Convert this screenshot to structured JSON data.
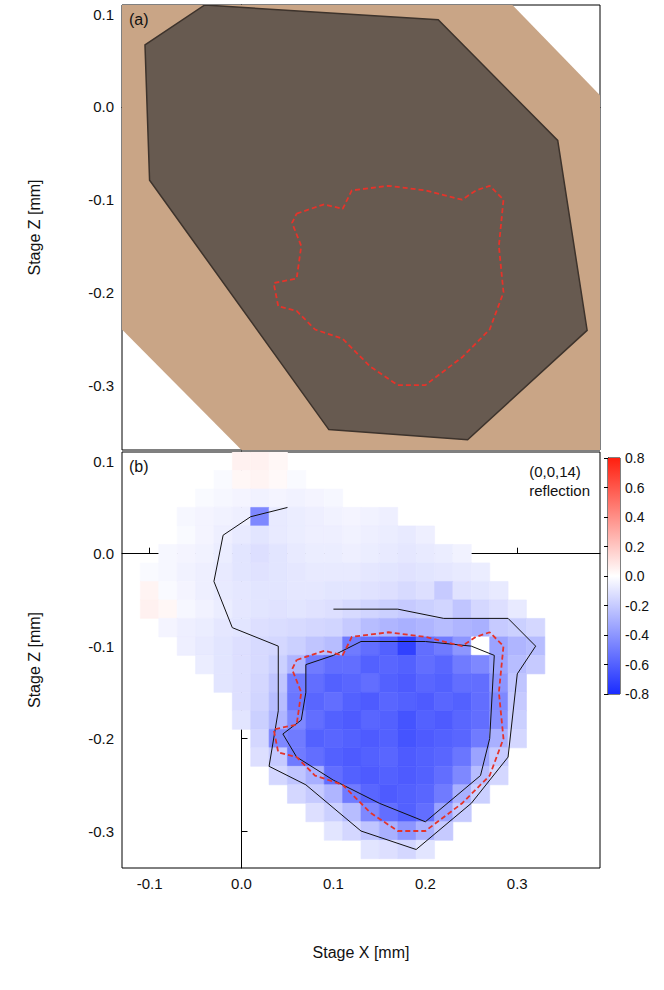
{
  "chart_data": [
    {
      "type": "photo",
      "label": "(a)",
      "ylabel": "Stage Z [mm]",
      "xlim": [
        -0.13,
        0.39
      ],
      "ylim": [
        -0.37,
        0.11
      ],
      "xticks": [
        -0.1,
        {
          "value": 0,
          "label": "0.0"
        },
        0.1,
        0.2,
        0.3
      ],
      "yticks": [
        -0.3,
        -0.2,
        -0.1,
        {
          "value": 0,
          "label": "0.0"
        },
        0.1
      ],
      "tick_labels": "y",
      "photo_edge": [
        [
          -0.3,
          -0.07
        ],
        [
          -0.3,
          0.3
        ],
        [
          0.109,
          0.3
        ],
        [
          0.5,
          -0.1
        ],
        [
          0.5,
          -0.5
        ],
        [
          0.13,
          -0.5
        ]
      ],
      "crystal": [
        [
          -0.105,
          0.067
        ],
        [
          -0.04,
          0.11
        ],
        [
          0.214,
          0.094
        ],
        [
          0.344,
          -0.036
        ],
        [
          0.376,
          -0.241
        ],
        [
          0.246,
          -0.359
        ],
        [
          0.095,
          -0.348
        ],
        [
          -0.1,
          -0.079
        ]
      ],
      "outline": {
        "color": "#e5332a",
        "line_style": "dashed",
        "points": [
          [
            0.06,
            -0.115
          ],
          [
            0.09,
            -0.105
          ],
          [
            0.11,
            -0.11
          ],
          [
            0.12,
            -0.09
          ],
          [
            0.16,
            -0.085
          ],
          [
            0.2,
            -0.09
          ],
          [
            0.24,
            -0.1
          ],
          [
            0.255,
            -0.09
          ],
          [
            0.27,
            -0.085
          ],
          [
            0.285,
            -0.1
          ],
          [
            0.28,
            -0.15
          ],
          [
            0.285,
            -0.2
          ],
          [
            0.27,
            -0.24
          ],
          [
            0.24,
            -0.27
          ],
          [
            0.2,
            -0.3
          ],
          [
            0.17,
            -0.3
          ],
          [
            0.14,
            -0.28
          ],
          [
            0.11,
            -0.25
          ],
          [
            0.08,
            -0.24
          ],
          [
            0.06,
            -0.22
          ],
          [
            0.04,
            -0.215
          ],
          [
            0.035,
            -0.19
          ],
          [
            0.06,
            -0.185
          ],
          [
            0.065,
            -0.15
          ],
          [
            0.055,
            -0.125
          ],
          [
            0.06,
            -0.115
          ]
        ]
      }
    },
    {
      "type": "heatmap",
      "label": "(b)",
      "annotation": "(0,0,14) reflection",
      "xlabel": "Stage X [mm]",
      "ylabel": "Stage Z [mm]",
      "xlim": [
        -0.13,
        0.39
      ],
      "ylim": [
        -0.34,
        0.11
      ],
      "xticks": [
        -0.1,
        {
          "value": 0,
          "label": "0.0"
        },
        0.1,
        0.2,
        0.3
      ],
      "yticks": [
        -0.3,
        -0.2,
        -0.1,
        {
          "value": 0,
          "label": "0.0"
        },
        0.1
      ],
      "cells": {
        "x": [
          -0.1,
          -0.08,
          -0.06,
          -0.04,
          -0.02,
          0,
          0.02,
          0.04,
          0.06,
          0.08,
          0.1,
          0.12,
          0.14,
          0.16,
          0.18,
          0.2,
          0.22,
          0.24,
          0.26,
          0.28,
          0.3,
          0.32
        ],
        "z": [
          0.1,
          0.08,
          0.06,
          0.04,
          0.02,
          0,
          -0.02,
          -0.04,
          -0.06,
          -0.08,
          -0.1,
          -0.12,
          -0.14,
          -0.16,
          -0.18,
          -0.2,
          -0.22,
          -0.24,
          -0.26,
          -0.28,
          -0.3,
          -0.32
        ],
        "values": [
          [
            null,
            null,
            null,
            null,
            null,
            0.05,
            0.05,
            0.03,
            null,
            null,
            null,
            null,
            null,
            null,
            null,
            null,
            null,
            null,
            null,
            null,
            null,
            null
          ],
          [
            null,
            null,
            null,
            null,
            -0.02,
            0.03,
            0.04,
            0.02,
            -0.02,
            null,
            null,
            null,
            null,
            null,
            null,
            null,
            null,
            null,
            null,
            null,
            null,
            null
          ],
          [
            null,
            null,
            null,
            -0.02,
            -0.03,
            -0.04,
            -0.05,
            -0.04,
            -0.05,
            -0.04,
            -0.03,
            null,
            null,
            null,
            null,
            null,
            null,
            null,
            null,
            null,
            null,
            null
          ],
          [
            null,
            null,
            -0.03,
            -0.04,
            -0.05,
            -0.06,
            -0.45,
            -0.08,
            -0.07,
            -0.06,
            -0.05,
            -0.04,
            -0.05,
            -0.06,
            null,
            null,
            null,
            null,
            null,
            null,
            null,
            null
          ],
          [
            null,
            null,
            -0.02,
            -0.04,
            -0.06,
            -0.08,
            -0.1,
            -0.08,
            -0.07,
            -0.06,
            -0.06,
            -0.05,
            -0.06,
            -0.07,
            -0.08,
            -0.06,
            null,
            null,
            null,
            null,
            null,
            null
          ],
          [
            null,
            -0.03,
            -0.04,
            -0.05,
            -0.07,
            -0.1,
            -0.12,
            -0.1,
            -0.08,
            -0.07,
            -0.07,
            -0.06,
            -0.07,
            -0.08,
            -0.09,
            -0.08,
            -0.07,
            -0.05,
            null,
            null,
            null,
            null
          ],
          [
            -0.02,
            -0.03,
            -0.05,
            -0.06,
            -0.08,
            -0.1,
            -0.11,
            -0.1,
            -0.09,
            -0.08,
            -0.08,
            -0.08,
            -0.09,
            -0.1,
            -0.11,
            -0.1,
            -0.09,
            -0.08,
            -0.07,
            null,
            null,
            null
          ],
          [
            0.04,
            -0.02,
            -0.04,
            -0.06,
            -0.08,
            -0.09,
            -0.1,
            -0.1,
            -0.09,
            -0.09,
            -0.1,
            -0.1,
            -0.11,
            -0.12,
            -0.14,
            -0.12,
            -0.2,
            -0.11,
            -0.1,
            -0.08,
            null,
            null
          ],
          [
            0.05,
            0.03,
            -0.03,
            -0.05,
            -0.07,
            -0.09,
            -0.1,
            -0.11,
            -0.1,
            -0.11,
            -0.12,
            -0.14,
            -0.16,
            -0.18,
            -0.2,
            -0.18,
            -0.16,
            -0.22,
            -0.15,
            -0.12,
            -0.08,
            null
          ],
          [
            null,
            -0.04,
            -0.06,
            -0.07,
            -0.09,
            -0.1,
            -0.12,
            -0.13,
            -0.14,
            -0.15,
            -0.16,
            -0.2,
            -0.25,
            -0.28,
            -0.3,
            -0.28,
            -0.25,
            -0.28,
            -0.3,
            -0.2,
            -0.18,
            -0.15
          ],
          [
            null,
            null,
            -0.06,
            -0.08,
            -0.1,
            -0.12,
            -0.14,
            -0.15,
            -0.18,
            -0.22,
            -0.25,
            -0.5,
            -0.55,
            -0.6,
            -0.72,
            -0.55,
            -0.5,
            -0.4,
            0,
            -0.35,
            -0.28,
            -0.25
          ],
          [
            null,
            null,
            null,
            -0.07,
            -0.1,
            -0.12,
            -0.14,
            -0.18,
            -0.28,
            -0.5,
            -0.55,
            -0.55,
            -0.6,
            -0.58,
            -0.6,
            -0.55,
            -0.58,
            -0.5,
            -0.45,
            -0.35,
            -0.25,
            -0.2
          ],
          [
            null,
            null,
            null,
            null,
            -0.1,
            -0.12,
            -0.15,
            -0.22,
            -0.5,
            -0.55,
            -0.6,
            -0.58,
            -0.55,
            -0.6,
            -0.62,
            -0.58,
            -0.6,
            -0.55,
            -0.55,
            -0.4,
            -0.22,
            null
          ],
          [
            null,
            null,
            null,
            null,
            null,
            -0.12,
            -0.16,
            -0.25,
            -0.52,
            -0.58,
            -0.55,
            -0.6,
            -0.62,
            -0.58,
            -0.6,
            -0.62,
            -0.58,
            -0.6,
            -0.55,
            -0.45,
            -0.2,
            null
          ],
          [
            null,
            null,
            null,
            null,
            null,
            -0.1,
            -0.18,
            -0.28,
            -0.45,
            -0.55,
            -0.6,
            -0.62,
            -0.58,
            -0.6,
            -0.65,
            -0.6,
            -0.62,
            -0.58,
            -0.55,
            -0.42,
            -0.18,
            null
          ],
          [
            null,
            null,
            null,
            null,
            null,
            null,
            -0.15,
            -0.45,
            -0.5,
            -0.6,
            -0.58,
            -0.6,
            -0.62,
            -0.6,
            -0.65,
            -0.62,
            -0.6,
            -0.58,
            -0.5,
            -0.3,
            -0.15,
            null
          ],
          [
            null,
            null,
            null,
            null,
            null,
            null,
            -0.12,
            -0.2,
            -0.5,
            -0.55,
            -0.6,
            -0.62,
            -0.6,
            -0.58,
            -0.62,
            -0.6,
            -0.58,
            -0.52,
            -0.35,
            -0.2,
            null,
            null
          ],
          [
            null,
            null,
            null,
            null,
            null,
            null,
            null,
            -0.15,
            -0.22,
            -0.3,
            -0.55,
            -0.6,
            -0.62,
            -0.6,
            -0.62,
            -0.6,
            -0.55,
            -0.45,
            -0.25,
            -0.15,
            null,
            null
          ],
          [
            null,
            null,
            null,
            null,
            null,
            null,
            null,
            null,
            -0.15,
            -0.2,
            -0.28,
            -0.5,
            -0.58,
            -0.62,
            -0.6,
            -0.58,
            -0.5,
            -0.3,
            -0.18,
            null,
            null,
            null
          ],
          [
            null,
            null,
            null,
            null,
            null,
            null,
            null,
            null,
            null,
            -0.12,
            -0.18,
            -0.25,
            -0.45,
            -0.55,
            -0.6,
            -0.55,
            -0.35,
            -0.2,
            null,
            null,
            null,
            null
          ],
          [
            null,
            null,
            null,
            null,
            null,
            null,
            null,
            null,
            null,
            null,
            -0.1,
            -0.15,
            -0.22,
            -0.3,
            -0.4,
            -0.3,
            -0.2,
            null,
            null,
            null,
            null,
            null
          ],
          [
            null,
            null,
            null,
            null,
            null,
            null,
            null,
            null,
            null,
            null,
            null,
            null,
            -0.1,
            -0.12,
            -0.15,
            -0.1,
            null,
            null,
            null,
            null,
            null,
            null
          ]
        ]
      },
      "colorbar": {
        "range": [
          -0.8,
          0.8
        ],
        "ticks": [
          -0.8,
          -0.6,
          -0.4,
          -0.2,
          {
            "value": 0,
            "label": "0.0"
          },
          0.2,
          0.4,
          0.6,
          0.8
        ],
        "colors": [
          "#1a2cff",
          "#ffffff",
          "#ff1f0f"
        ]
      },
      "contours": [
        [
          [
            0.05,
            0.05
          ],
          [
            0.01,
            0.04
          ],
          [
            -0.02,
            0.02
          ],
          [
            -0.03,
            -0.03
          ],
          [
            -0.01,
            -0.08
          ],
          [
            0.04,
            -0.1
          ],
          [
            0.04,
            -0.17
          ],
          [
            0.03,
            -0.23
          ],
          [
            0.07,
            -0.25
          ],
          [
            0.13,
            -0.3
          ],
          [
            0.19,
            -0.32
          ],
          [
            0.25,
            -0.27
          ],
          [
            0.29,
            -0.22
          ],
          [
            0.3,
            -0.13
          ],
          [
            0.32,
            -0.1
          ],
          [
            0.29,
            -0.07
          ],
          [
            0.22,
            -0.07
          ],
          [
            0.17,
            -0.06
          ],
          [
            0.1,
            -0.06
          ]
        ],
        [
          [
            0.07,
            -0.12
          ],
          [
            0.1,
            -0.11
          ],
          [
            0.13,
            -0.095
          ],
          [
            0.2,
            -0.095
          ],
          [
            0.25,
            -0.1
          ],
          [
            0.275,
            -0.11
          ],
          [
            0.27,
            -0.2
          ],
          [
            0.26,
            -0.24
          ],
          [
            0.2,
            -0.29
          ],
          [
            0.15,
            -0.27
          ],
          [
            0.1,
            -0.245
          ],
          [
            0.06,
            -0.22
          ],
          [
            0.045,
            -0.195
          ],
          [
            0.065,
            -0.18
          ],
          [
            0.07,
            -0.15
          ],
          [
            0.07,
            -0.12
          ]
        ]
      ],
      "outline": {
        "color": "#e5332a",
        "line_style": "dashed",
        "points": [
          [
            0.06,
            -0.115
          ],
          [
            0.09,
            -0.105
          ],
          [
            0.11,
            -0.11
          ],
          [
            0.12,
            -0.09
          ],
          [
            0.16,
            -0.085
          ],
          [
            0.2,
            -0.09
          ],
          [
            0.24,
            -0.1
          ],
          [
            0.255,
            -0.09
          ],
          [
            0.27,
            -0.085
          ],
          [
            0.285,
            -0.1
          ],
          [
            0.28,
            -0.15
          ],
          [
            0.285,
            -0.2
          ],
          [
            0.27,
            -0.24
          ],
          [
            0.24,
            -0.27
          ],
          [
            0.2,
            -0.3
          ],
          [
            0.17,
            -0.3
          ],
          [
            0.14,
            -0.28
          ],
          [
            0.11,
            -0.25
          ],
          [
            0.08,
            -0.24
          ],
          [
            0.06,
            -0.22
          ],
          [
            0.04,
            -0.215
          ],
          [
            0.035,
            -0.19
          ],
          [
            0.06,
            -0.185
          ],
          [
            0.065,
            -0.15
          ],
          [
            0.055,
            -0.125
          ],
          [
            0.06,
            -0.115
          ]
        ]
      }
    }
  ]
}
